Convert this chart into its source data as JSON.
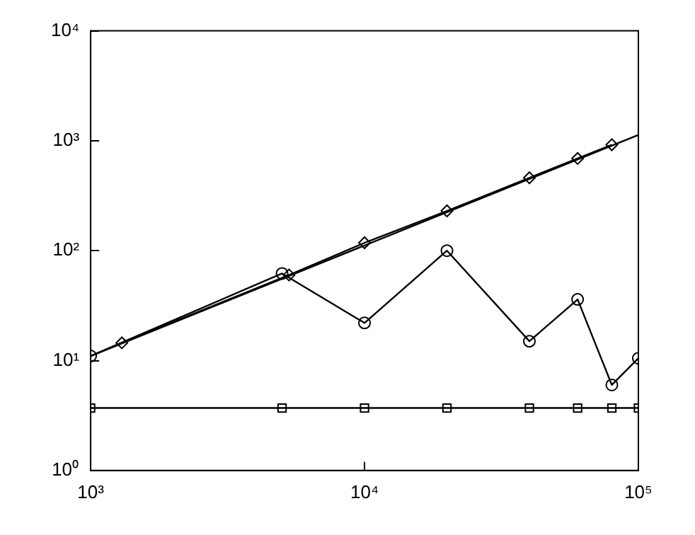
{
  "chart_data": {
    "type": "line",
    "log": "xy",
    "grid": false,
    "legend": false,
    "line_style": "solid",
    "xlim": [
      1000,
      100000
    ],
    "ylim": [
      1,
      10000
    ],
    "xticks": [
      {
        "value": 1000,
        "label": "10³"
      },
      {
        "value": 10000,
        "label": "10⁴"
      },
      {
        "value": 100000,
        "label": "10⁵"
      }
    ],
    "yticks": [
      {
        "value": 1,
        "label": "10⁰"
      },
      {
        "value": 10,
        "label": "10¹"
      },
      {
        "value": 100,
        "label": "10²"
      },
      {
        "value": 1000,
        "label": "10³"
      },
      {
        "value": 10000,
        "label": "10⁴"
      }
    ],
    "series": [
      {
        "color": "#000000",
        "marker": "diamond",
        "x": [
          1300,
          5300,
          10000,
          20000,
          40000,
          60000,
          80000
        ],
        "values": [
          14.5,
          60,
          118,
          230,
          460,
          690,
          920
        ]
      },
      {
        "color": "#000000",
        "x": [
          1000,
          100000
        ],
        "values": [
          11,
          1130
        ]
      },
      {
        "color": "#000000",
        "marker": "circle",
        "x": [
          1000,
          5000,
          10000,
          20000,
          40000,
          60000,
          80000,
          100000
        ],
        "values": [
          11,
          62,
          22,
          100,
          15,
          36,
          6,
          10.5
        ]
      },
      {
        "color": "#000000",
        "marker": "square",
        "x": [
          1000,
          5000,
          10000,
          20000,
          40000,
          60000,
          80000,
          100000
        ],
        "values": [
          3.7,
          3.7,
          3.7,
          3.7,
          3.7,
          3.7,
          3.7,
          3.7
        ]
      }
    ]
  }
}
